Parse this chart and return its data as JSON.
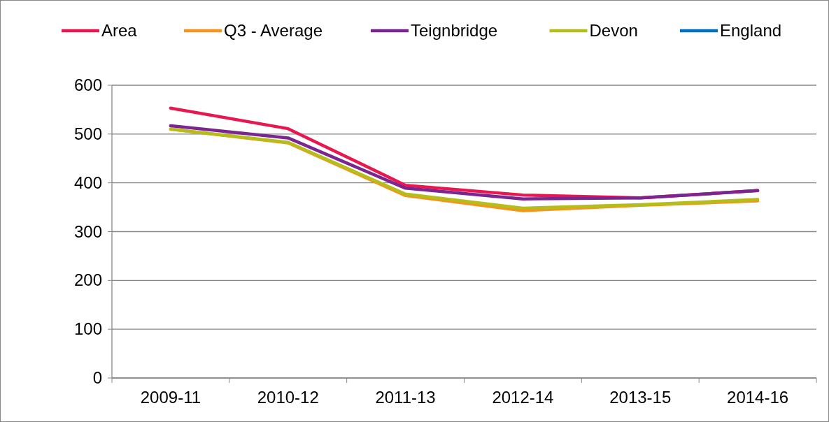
{
  "chart_data": {
    "type": "line",
    "categories": [
      "2009-11",
      "2010-12",
      "2011-13",
      "2012-14",
      "2013-15",
      "2014-16"
    ],
    "series": [
      {
        "name": "Area",
        "color": "#e8174f",
        "values": [
          553,
          511,
          395,
          375,
          369,
          384
        ]
      },
      {
        "name": "Q3 - Average",
        "color": "#f7941d",
        "values": [
          510,
          482,
          374,
          343,
          354,
          363
        ]
      },
      {
        "name": "Teignbridge",
        "color": "#7b2590",
        "values": [
          517,
          492,
          389,
          367,
          369,
          384
        ]
      },
      {
        "name": "Devon",
        "color": "#b5bd1b",
        "values": [
          510,
          483,
          377,
          348,
          355,
          366
        ]
      },
      {
        "name": "England",
        "color": "#0070c0",
        "values": [
          null,
          null,
          null,
          null,
          null,
          null
        ]
      }
    ],
    "ylim": [
      0,
      600
    ],
    "yticks": [
      0,
      100,
      200,
      300,
      400,
      500,
      600
    ],
    "grid": "y",
    "legend": "top",
    "marker": "none",
    "line_style": "solid"
  }
}
